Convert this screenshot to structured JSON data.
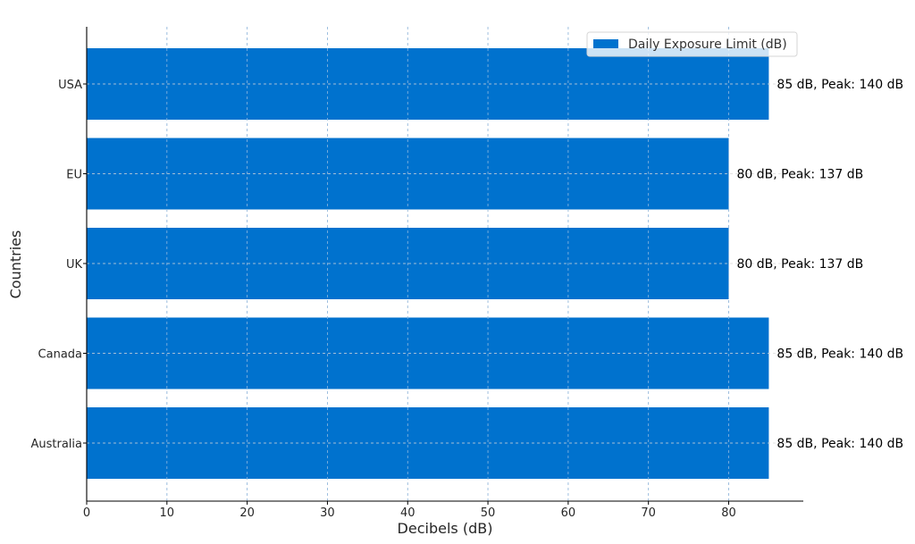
{
  "chart_data": {
    "type": "bar",
    "orientation": "horizontal",
    "title": "",
    "xlabel": "Decibels (dB)",
    "ylabel": "Countries",
    "xlim": [
      0,
      90
    ],
    "xticks": [
      0,
      10,
      20,
      30,
      40,
      50,
      60,
      70,
      80
    ],
    "categories": [
      "USA",
      "EU",
      "UK",
      "Canada",
      "Australia"
    ],
    "series": [
      {
        "name": "Daily Exposure Limit (dB)",
        "color": "#0072CE",
        "values": [
          85,
          80,
          80,
          85,
          85
        ],
        "labels": [
          "85 dB, Peak: 140 dB",
          "80 dB, Peak: 137 dB",
          "80 dB, Peak: 137 dB",
          "85 dB, Peak: 140 dB",
          "85 dB, Peak: 140 dB"
        ]
      }
    ],
    "grid": true,
    "legend_position": "top-right"
  }
}
